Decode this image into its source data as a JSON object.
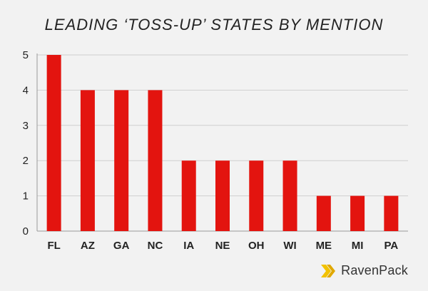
{
  "title": "LEADING ‘TOSS-UP’ STATES BY MENTION",
  "brand": {
    "name": "RavenPack",
    "icon": "ravenpack-logo-icon"
  },
  "colors": {
    "bar": "#e3140f",
    "grid": "#cfcfcf",
    "axis": "#9a9a9a",
    "background": "#f2f2f2"
  },
  "chart_data": {
    "type": "bar",
    "title": "LEADING ‘TOSS-UP’ STATES BY MENTION",
    "xlabel": "",
    "ylabel": "",
    "categories": [
      "FL",
      "AZ",
      "GA",
      "NC",
      "IA",
      "NE",
      "OH",
      "WI",
      "ME",
      "MI",
      "PA"
    ],
    "values": [
      5,
      4,
      4,
      4,
      2,
      2,
      2,
      2,
      1,
      1,
      1
    ],
    "ylim": [
      0,
      5
    ],
    "yticks": [
      "0",
      "1",
      "2",
      "3",
      "4",
      "5"
    ],
    "grid": true,
    "legend": "none"
  }
}
